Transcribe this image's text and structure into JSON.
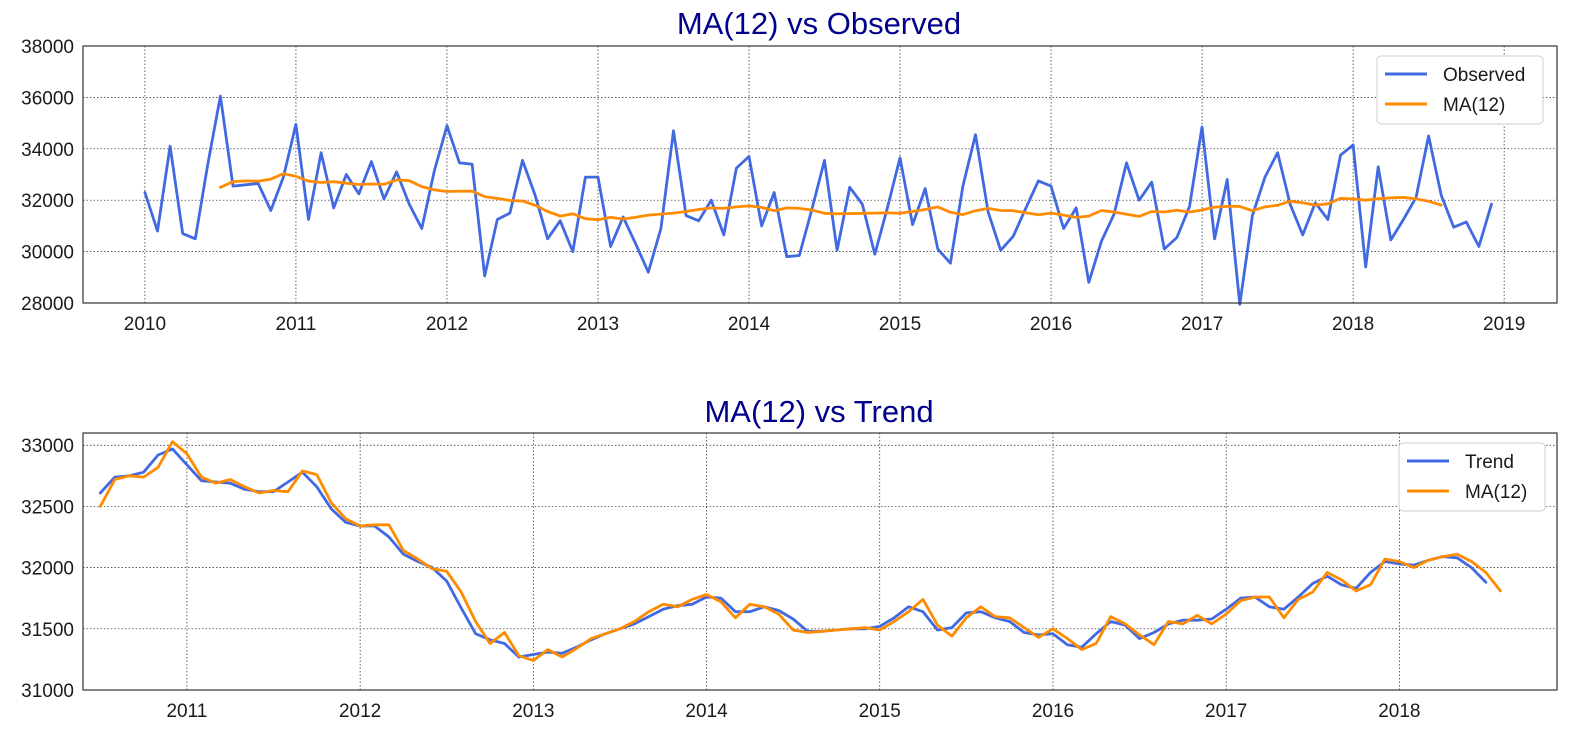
{
  "colors": {
    "observed": "#4169e1",
    "ma": "#ff8c00",
    "title": "#00008b"
  },
  "chart_data": [
    {
      "type": "line",
      "title": "MA(12) vs Observed",
      "xlabel": "",
      "ylabel": "",
      "xlim": [
        2009.59,
        2019.35
      ],
      "ylim": [
        28000,
        38000
      ],
      "yticks": [
        28000,
        30000,
        32000,
        34000,
        36000,
        38000
      ],
      "xticks": [
        2010,
        2011,
        2012,
        2013,
        2014,
        2015,
        2016,
        2017,
        2018,
        2019
      ],
      "grid": true,
      "legend_position": "top-right",
      "series": [
        {
          "name": "Observed",
          "color": "#4169e1",
          "x_start": 2010.0,
          "x_step": 0.08333,
          "values": [
            32300,
            30800,
            34100,
            30700,
            30500,
            33400,
            36050,
            32550,
            32600,
            32650,
            31600,
            32900,
            34950,
            31250,
            33850,
            31700,
            33000,
            32250,
            33500,
            32050,
            33100,
            31850,
            30900,
            33150,
            34900,
            33450,
            33400,
            29050,
            31250,
            31500,
            33550,
            32200,
            30500,
            31200,
            30000,
            32900,
            32900,
            30200,
            31350,
            30300,
            29200,
            30900,
            34700,
            31400,
            31200,
            32000,
            30650,
            33250,
            33700,
            31000,
            32300,
            29800,
            29850,
            31650,
            33550,
            30050,
            32500,
            31850,
            29900,
            31700,
            33650,
            31050,
            32450,
            30100,
            29550,
            32550,
            34550,
            31550,
            30050,
            30600,
            31700,
            32750,
            32550,
            30900,
            31700,
            28800,
            30400,
            31450,
            33450,
            32000,
            32700,
            30100,
            30550,
            31750,
            34850,
            30500,
            32800,
            27950,
            31400,
            32900,
            33850,
            31850,
            30650,
            31900,
            31250,
            33750,
            34150,
            29400,
            33300,
            30450,
            31250,
            32100,
            34500,
            32200,
            30950,
            31150,
            30200,
            31850
          ]
        },
        {
          "name": "MA(12)",
          "color": "#ff8c00",
          "x_start": 2010.5,
          "x_step": 0.08333,
          "values": [
            32500,
            32720,
            32750,
            32740,
            32820,
            33030,
            32930,
            32740,
            32690,
            32720,
            32660,
            32610,
            32630,
            32620,
            32790,
            32760,
            32530,
            32400,
            32340,
            32350,
            32350,
            32140,
            32070,
            31990,
            31970,
            31800,
            31560,
            31380,
            31470,
            31280,
            31240,
            31330,
            31270,
            31340,
            31420,
            31460,
            31500,
            31560,
            31640,
            31700,
            31680,
            31740,
            31780,
            31720,
            31590,
            31700,
            31680,
            31620,
            31490,
            31470,
            31480,
            31490,
            31500,
            31510,
            31490,
            31560,
            31640,
            31740,
            31530,
            31440,
            31590,
            31680,
            31600,
            31590,
            31510,
            31430,
            31500,
            31420,
            31330,
            31380,
            31600,
            31540,
            31450,
            31370,
            31560,
            31540,
            31610,
            31540,
            31620,
            31730,
            31760,
            31760,
            31590,
            31740,
            31800,
            31960,
            31900,
            31810,
            31860,
            32070,
            32050,
            32000,
            32060,
            32090,
            32110,
            32050,
            31960,
            31810
          ]
        }
      ]
    },
    {
      "type": "line",
      "title": "MA(12) vs Trend",
      "xlabel": "",
      "ylabel": "",
      "xlim": [
        2010.4,
        2018.91
      ],
      "ylim": [
        31000,
        33100
      ],
      "yticks": [
        31000,
        31500,
        32000,
        32500,
        33000
      ],
      "xticks": [
        2011,
        2012,
        2013,
        2014,
        2015,
        2016,
        2017,
        2018
      ],
      "grid": true,
      "legend_position": "top-right",
      "series": [
        {
          "name": "Trend",
          "color": "#4169e1",
          "x_start": 2010.5,
          "x_step": 0.08333,
          "values": [
            32610,
            32740,
            32750,
            32780,
            32920,
            32970,
            32840,
            32710,
            32700,
            32690,
            32640,
            32620,
            32620,
            32700,
            32780,
            32660,
            32480,
            32370,
            32340,
            32340,
            32250,
            32110,
            32050,
            32000,
            31890,
            31670,
            31460,
            31410,
            31380,
            31270,
            31290,
            31310,
            31300,
            31350,
            31410,
            31460,
            31500,
            31540,
            31600,
            31660,
            31690,
            31700,
            31760,
            31750,
            31640,
            31640,
            31680,
            31650,
            31580,
            31480,
            31480,
            31490,
            31500,
            31500,
            31520,
            31590,
            31680,
            31640,
            31490,
            31510,
            31630,
            31640,
            31590,
            31560,
            31470,
            31450,
            31460,
            31370,
            31350,
            31460,
            31560,
            31530,
            31420,
            31470,
            31540,
            31570,
            31570,
            31580,
            31660,
            31750,
            31760,
            31680,
            31660,
            31760,
            31870,
            31930,
            31860,
            31830,
            31960,
            32050,
            32030,
            32020,
            32060,
            32090,
            32080,
            32000,
            31880
          ]
        },
        {
          "name": "MA(12)",
          "color": "#ff8c00",
          "x_start": 2010.5,
          "x_step": 0.08333,
          "values": [
            32500,
            32720,
            32750,
            32740,
            32820,
            33030,
            32930,
            32740,
            32690,
            32720,
            32660,
            32610,
            32630,
            32620,
            32790,
            32760,
            32530,
            32400,
            32340,
            32350,
            32350,
            32140,
            32070,
            31990,
            31970,
            31800,
            31560,
            31380,
            31470,
            31280,
            31240,
            31330,
            31270,
            31340,
            31420,
            31460,
            31500,
            31560,
            31640,
            31700,
            31680,
            31740,
            31780,
            31720,
            31590,
            31700,
            31680,
            31620,
            31490,
            31470,
            31480,
            31490,
            31500,
            31510,
            31490,
            31560,
            31640,
            31740,
            31530,
            31440,
            31590,
            31680,
            31600,
            31590,
            31510,
            31430,
            31500,
            31420,
            31330,
            31380,
            31600,
            31540,
            31450,
            31370,
            31560,
            31540,
            31610,
            31540,
            31620,
            31730,
            31760,
            31760,
            31590,
            31740,
            31800,
            31960,
            31900,
            31810,
            31860,
            32070,
            32050,
            32000,
            32060,
            32090,
            32110,
            32050,
            31960,
            31810
          ]
        }
      ]
    }
  ]
}
